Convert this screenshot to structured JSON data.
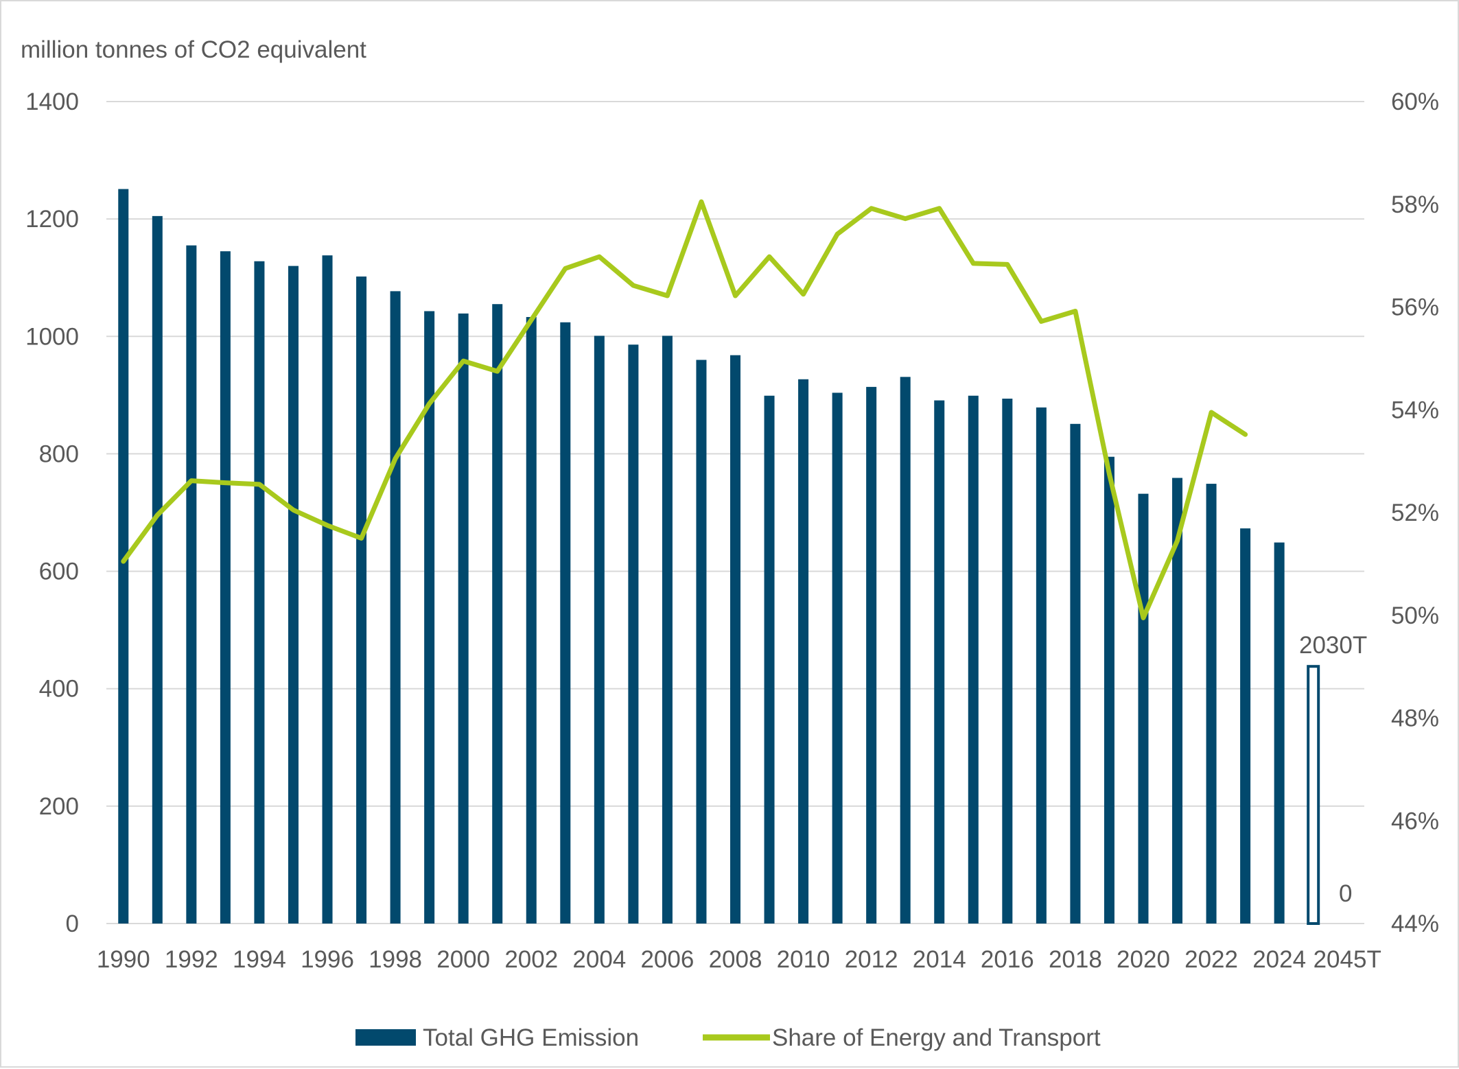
{
  "chart_data": {
    "type": "bar",
    "title": "",
    "ylabel": "million tonnes of CO2 equivalent",
    "y2label": "",
    "categories": [
      "1990",
      "1991",
      "1992",
      "1993",
      "1994",
      "1995",
      "1996",
      "1997",
      "1998",
      "1999",
      "2000",
      "2001",
      "2002",
      "2003",
      "2004",
      "2005",
      "2006",
      "2007",
      "2008",
      "2009",
      "2010",
      "2011",
      "2012",
      "2013",
      "2014",
      "2015",
      "2016",
      "2017",
      "2018",
      "2019",
      "2020",
      "2021",
      "2022",
      "2023",
      "2024",
      "2030T",
      "2045T"
    ],
    "x_tick_labels": [
      "1990",
      "1992",
      "1994",
      "1996",
      "1998",
      "2000",
      "2002",
      "2004",
      "2006",
      "2008",
      "2010",
      "2012",
      "2014",
      "2016",
      "2018",
      "2020",
      "2022",
      "2024",
      "2045T"
    ],
    "ylim": [
      0,
      1400
    ],
    "yticks": [
      0,
      200,
      400,
      600,
      800,
      1000,
      1200,
      1400
    ],
    "y2lim": [
      0.44,
      0.6
    ],
    "y2ticks": [
      "44%",
      "46%",
      "48%",
      "50%",
      "52%",
      "54%",
      "56%",
      "58%",
      "60%"
    ],
    "grid": true,
    "legend_position": "bottom",
    "colors": {
      "bars": "#02496d",
      "line": "#a8c91d",
      "grid": "#d9d9d9",
      "text": "#595959"
    },
    "series": [
      {
        "name": "Total GHG Emission",
        "type": "bar",
        "axis": "left",
        "values": [
          1251,
          1205,
          1155,
          1145,
          1128,
          1120,
          1138,
          1102,
          1077,
          1043,
          1039,
          1055,
          1033,
          1024,
          1001,
          986,
          1001,
          960,
          968,
          899,
          927,
          904,
          914,
          931,
          891,
          899,
          894,
          879,
          851,
          795,
          732,
          759,
          749,
          673,
          649,
          438,
          0
        ]
      },
      {
        "name": "Share of Energy and Transport",
        "type": "line",
        "axis": "right",
        "values": [
          0.5105,
          0.5195,
          0.5262,
          0.5258,
          0.5255,
          0.5205,
          0.5175,
          0.515,
          0.5305,
          0.5412,
          0.5495,
          0.5475,
          0.5575,
          0.5675,
          0.5698,
          0.5642,
          0.5622,
          0.5805,
          0.5622,
          0.5698,
          0.5625,
          0.5742,
          0.5792,
          0.5772,
          0.5792,
          0.5685,
          0.5683,
          0.5572,
          0.5592,
          0.5275,
          0.4995,
          0.5145,
          0.5395,
          0.5352,
          null,
          null,
          null
        ]
      }
    ],
    "annotations": [
      {
        "text": "2030T"
      },
      {
        "text": "0"
      }
    ],
    "target_style": "outline"
  }
}
